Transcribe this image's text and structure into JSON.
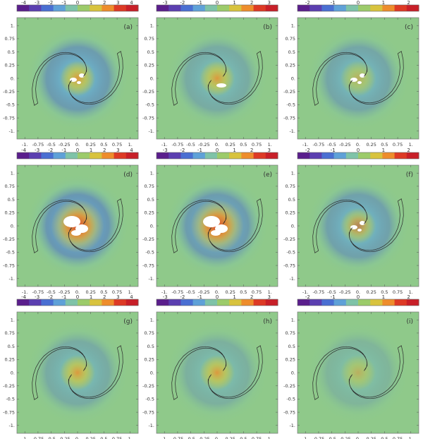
{
  "figure": {
    "columns": 3,
    "rows": 3
  },
  "colorbars": [
    {
      "ticks": [
        "-4",
        "-3",
        "-2",
        "-1",
        "0",
        "1",
        "2",
        "3",
        "4"
      ],
      "range": [
        -4.5,
        4.5
      ]
    },
    {
      "ticks": [
        "-3",
        "-2",
        "-1",
        "0",
        "1",
        "2",
        "3"
      ],
      "range": [
        -3.5,
        3.5
      ]
    },
    {
      "ticks": [
        "-2",
        "-1",
        "0",
        "1",
        "2"
      ],
      "range": [
        -2.4,
        2.4
      ]
    }
  ],
  "colormap": [
    "#5a1e8c",
    "#5b3fb0",
    "#4a6fd2",
    "#5fa1d8",
    "#7fc3a8",
    "#9ccb6a",
    "#d8c33e",
    "#ee8d2c",
    "#dd3a25",
    "#c81f28"
  ],
  "axes": {
    "x_ticks": [
      "-1.",
      "-0.75",
      "-0.5",
      "-0.25",
      "0.",
      "0.25",
      "0.5",
      "0.75",
      "1."
    ],
    "y_ticks": [
      "1.",
      "0.75",
      "0.5",
      "0.25",
      "0.",
      "-0.25",
      "-0.5",
      "-0.75",
      "-1."
    ],
    "x_range": [
      -1.15,
      1.15
    ],
    "y_range": [
      -1.15,
      1.15
    ]
  },
  "chart_data": [
    {
      "type": "heatmap",
      "panel": "(a)",
      "colorbar_range": [
        -4,
        4
      ],
      "x_range": [
        -1.15,
        1.15
      ],
      "y_range": [
        -1.15,
        1.15
      ],
      "overlay": "two spiral-arm contours"
    },
    {
      "type": "heatmap",
      "panel": "(b)",
      "colorbar_range": [
        -3,
        3
      ],
      "x_range": [
        -1.15,
        1.15
      ],
      "y_range": [
        -1.15,
        1.15
      ],
      "overlay": "two spiral-arm contours"
    },
    {
      "type": "heatmap",
      "panel": "(c)",
      "colorbar_range": [
        -2,
        2
      ],
      "x_range": [
        -1.15,
        1.15
      ],
      "y_range": [
        -1.15,
        1.15
      ],
      "overlay": "two spiral-arm contours"
    },
    {
      "type": "heatmap",
      "panel": "(d)",
      "colorbar_range": [
        -4,
        4
      ],
      "x_range": [
        -1.15,
        1.15
      ],
      "y_range": [
        -1.15,
        1.15
      ],
      "overlay": "two spiral-arm contours"
    },
    {
      "type": "heatmap",
      "panel": "(e)",
      "colorbar_range": [
        -3,
        3
      ],
      "x_range": [
        -1.15,
        1.15
      ],
      "y_range": [
        -1.15,
        1.15
      ],
      "overlay": "two spiral-arm contours"
    },
    {
      "type": "heatmap",
      "panel": "(f)",
      "colorbar_range": [
        -2,
        2
      ],
      "x_range": [
        -1.15,
        1.15
      ],
      "y_range": [
        -1.15,
        1.15
      ],
      "overlay": "two spiral-arm contours"
    },
    {
      "type": "heatmap",
      "panel": "(g)",
      "colorbar_range": [
        -4,
        4
      ],
      "x_range": [
        -1.15,
        1.15
      ],
      "y_range": [
        -1.15,
        1.15
      ],
      "overlay": "two spiral-arm contours"
    },
    {
      "type": "heatmap",
      "panel": "(h)",
      "colorbar_range": [
        -3,
        3
      ],
      "x_range": [
        -1.15,
        1.15
      ],
      "y_range": [
        -1.15,
        1.15
      ],
      "overlay": "two spiral-arm contours"
    },
    {
      "type": "heatmap",
      "panel": "(i)",
      "colorbar_range": [
        -2,
        2
      ],
      "x_range": [
        -1.15,
        1.15
      ],
      "y_range": [
        -1.15,
        1.15
      ],
      "overlay": "two spiral-arm contours"
    }
  ],
  "colors": {
    "background_field": "#8fc98a",
    "contour": "#2a2a2a",
    "saturated": "#ffffff"
  }
}
